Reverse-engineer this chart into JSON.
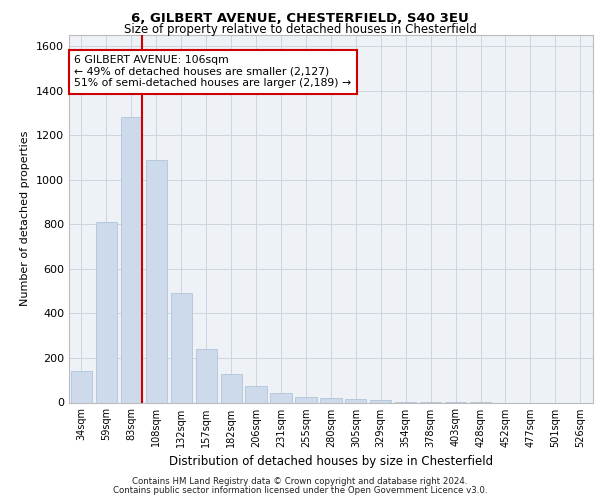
{
  "title1": "6, GILBERT AVENUE, CHESTERFIELD, S40 3EU",
  "title2": "Size of property relative to detached houses in Chesterfield",
  "xlabel": "Distribution of detached houses by size in Chesterfield",
  "ylabel": "Number of detached properties",
  "categories": [
    "34sqm",
    "59sqm",
    "83sqm",
    "108sqm",
    "132sqm",
    "157sqm",
    "182sqm",
    "206sqm",
    "231sqm",
    "255sqm",
    "280sqm",
    "305sqm",
    "329sqm",
    "354sqm",
    "378sqm",
    "403sqm",
    "428sqm",
    "452sqm",
    "477sqm",
    "501sqm",
    "526sqm"
  ],
  "values": [
    140,
    810,
    1280,
    1090,
    490,
    240,
    130,
    75,
    42,
    25,
    18,
    14,
    12,
    2,
    2,
    2,
    2,
    0,
    0,
    0,
    0
  ],
  "bar_color": "#ccdaeb",
  "bar_edge_color": "#aabdd4",
  "vline_color": "#cc0000",
  "annotation_text": "6 GILBERT AVENUE: 106sqm\n← 49% of detached houses are smaller (2,127)\n51% of semi-detached houses are larger (2,189) →",
  "annotation_box_color": "#ffffff",
  "annotation_box_edge": "#cc0000",
  "ylim": [
    0,
    1650
  ],
  "yticks": [
    0,
    200,
    400,
    600,
    800,
    1000,
    1200,
    1400,
    1600
  ],
  "footer1": "Contains HM Land Registry data © Crown copyright and database right 2024.",
  "footer2": "Contains public sector information licensed under the Open Government Licence v3.0.",
  "background_color": "#eef2f7",
  "grid_color": "#cdd5df"
}
